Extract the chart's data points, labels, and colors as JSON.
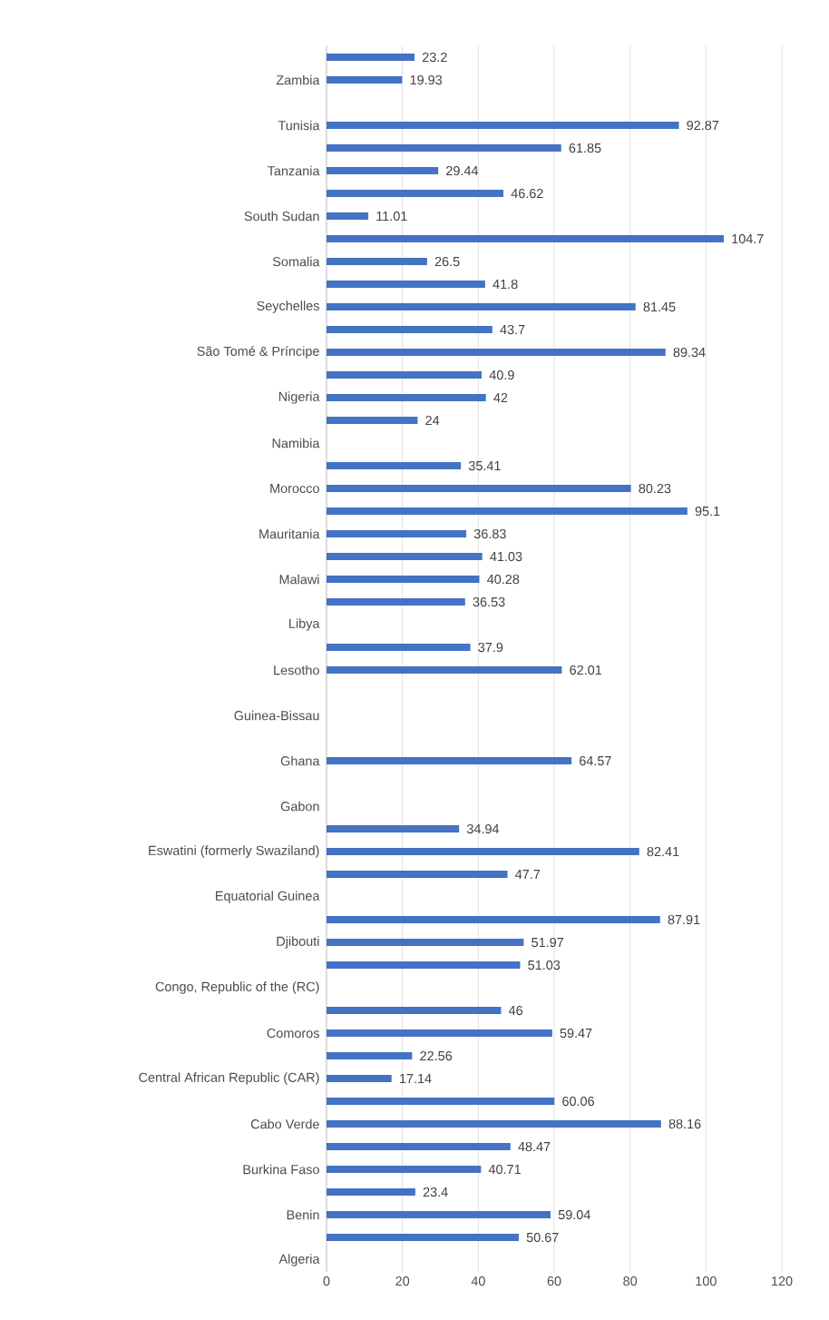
{
  "chart_data": {
    "type": "bar",
    "orientation": "horizontal",
    "categories": [
      null,
      "Zambia",
      null,
      "Tunisia",
      null,
      "Tanzania",
      null,
      "South Sudan",
      null,
      "Somalia",
      null,
      "Seychelles",
      null,
      "São Tomé & Príncipe",
      null,
      "Nigeria",
      null,
      "Namibia",
      null,
      "Morocco",
      null,
      "Mauritania",
      null,
      "Malawi",
      null,
      "Libya",
      null,
      "Lesotho",
      null,
      "Guinea-Bissau",
      null,
      "Ghana",
      null,
      "Gabon",
      null,
      "Eswatini (formerly Swaziland)",
      null,
      "Equatorial Guinea",
      null,
      "Djibouti",
      null,
      "Congo, Republic of the (RC)",
      null,
      "Comoros",
      null,
      "Central African Republic (CAR)",
      null,
      "Cabo Verde",
      null,
      "Burkina Faso",
      null,
      "Benin",
      null,
      "Algeria"
    ],
    "values": [
      23.2,
      19.93,
      null,
      92.87,
      61.85,
      29.44,
      46.62,
      11.01,
      104.7,
      26.5,
      41.8,
      81.45,
      43.7,
      89.34,
      40.9,
      42,
      24,
      null,
      35.41,
      80.23,
      95.1,
      36.83,
      41.03,
      40.28,
      36.53,
      null,
      37.9,
      62.01,
      null,
      null,
      null,
      64.57,
      null,
      null,
      34.94,
      82.41,
      47.7,
      null,
      87.91,
      51.97,
      51.03,
      null,
      46,
      59.47,
      22.56,
      17.14,
      60.06,
      88.16,
      48.47,
      40.71,
      23.4,
      59.04,
      50.67,
      null
    ],
    "color": "#4472c4",
    "xlim": [
      0,
      120
    ],
    "xticks": [
      0,
      20,
      40,
      60,
      80,
      100,
      120
    ],
    "grid": "x",
    "data_labels": true
  }
}
